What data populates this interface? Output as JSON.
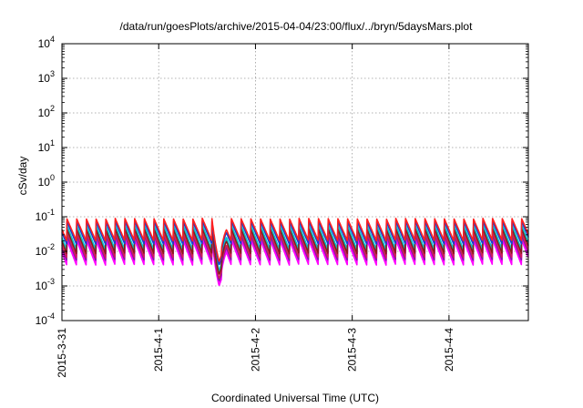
{
  "chart_data": {
    "type": "line",
    "title": "/data/run/goesPlots/archive/2015-04-04/23:00/flux/../bryn/5daysMars.plot",
    "xlabel": "Coordinated Universal Time (UTC)",
    "ylabel": "cSv/day",
    "yscale": "log",
    "ylim": [
      0.0001,
      10000
    ],
    "xlim": [
      0,
      4.82
    ],
    "x_unit": "days since 2015-3-31 00:00 UTC",
    "x_ticks": [
      {
        "x": 0,
        "label": "2015-3-31"
      },
      {
        "x": 1,
        "label": "2015-4-1"
      },
      {
        "x": 2,
        "label": "2015-4-2"
      },
      {
        "x": 3,
        "label": "2015-4-3"
      },
      {
        "x": 4,
        "label": "2015-4-4"
      }
    ],
    "y_ticks": [
      {
        "value": 0.0001,
        "base": "10",
        "exp": "-4"
      },
      {
        "value": 0.001,
        "base": "10",
        "exp": "-3"
      },
      {
        "value": 0.01,
        "base": "10",
        "exp": "-2"
      },
      {
        "value": 0.1,
        "base": "10",
        "exp": "-1"
      },
      {
        "value": 1,
        "base": "10",
        "exp": "0"
      },
      {
        "value": 10,
        "base": "10",
        "exp": "1"
      },
      {
        "value": 100,
        "base": "10",
        "exp": "2"
      },
      {
        "value": 1000,
        "base": "10",
        "exp": "3"
      },
      {
        "value": 10000,
        "base": "10",
        "exp": "4"
      }
    ],
    "grid": true,
    "legend": "none",
    "pattern": {
      "period_days": 0.1,
      "first_peak_x": 0.05,
      "anomaly": {
        "x_start": 1.55,
        "x_end": 1.7,
        "min_value": 0.001
      }
    },
    "series": [
      {
        "color": "#ff00ff",
        "peak": 0.022,
        "trough": 0.004
      },
      {
        "color": "#ff00ff",
        "peak": 0.025,
        "trough": 0.0048
      },
      {
        "color": "#7b1fa2",
        "peak": 0.03,
        "trough": 0.0055
      },
      {
        "color": "#d01c5b",
        "peak": 0.035,
        "trough": 0.0065
      },
      {
        "color": "#00c8c8",
        "peak": 0.05,
        "trough": 0.009
      },
      {
        "color": "#00c8c8",
        "peak": 0.058,
        "trough": 0.011
      },
      {
        "color": "#8b1a1a",
        "peak": 0.045,
        "trough": 0.0085
      },
      {
        "color": "#1a3fd0",
        "peak": 0.075,
        "trough": 0.016
      },
      {
        "color": "#ff2020",
        "peak": 0.09,
        "trough": 0.02
      }
    ]
  }
}
